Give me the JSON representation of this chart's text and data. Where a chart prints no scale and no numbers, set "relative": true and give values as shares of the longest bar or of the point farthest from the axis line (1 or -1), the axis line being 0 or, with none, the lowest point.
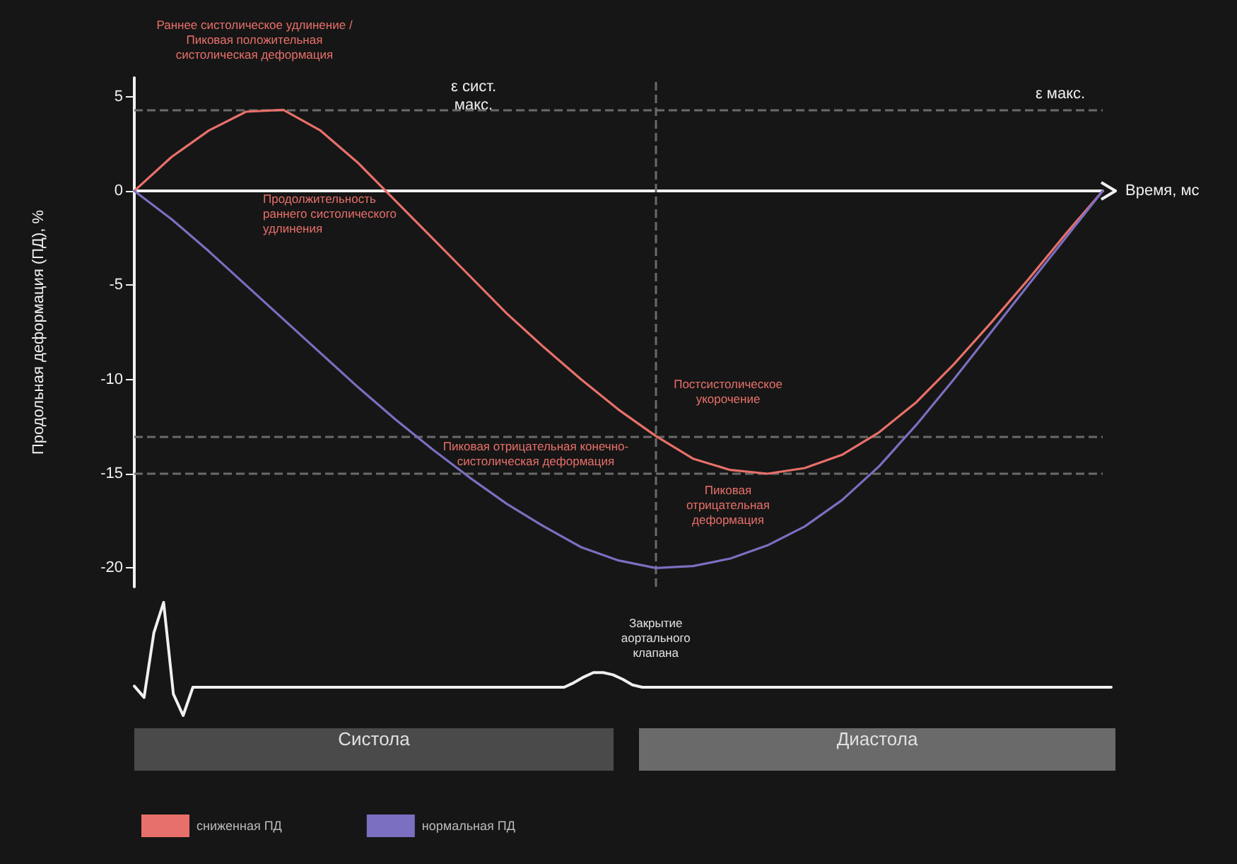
{
  "chart_data": [
    {
      "type": "line",
      "xlabel": "Время, мс",
      "ylabel": "Продольная деформация (ПД), %",
      "categories": [
        null,
        null,
        null,
        null,
        null,
        null,
        null,
        null,
        null,
        null,
        null,
        null,
        null,
        null,
        null,
        null,
        null,
        null,
        null,
        null,
        null,
        null,
        null,
        null,
        null,
        null,
        null
      ],
      "series": [
        {
          "name": "сниженная ПД",
          "color": "#e8706a",
          "values": [
            0,
            1.8,
            3.2,
            4.2,
            4.3,
            3.2,
            1.5,
            -0.5,
            -2.5,
            -4.5,
            -6.5,
            -8.3,
            -10,
            -11.6,
            -13,
            -14.2,
            -14.8,
            -15,
            -14.7,
            -14,
            -12.8,
            -11.2,
            -9.2,
            -7,
            -4.7,
            -2.3,
            0
          ]
        },
        {
          "name": "нормальная ПД",
          "color": "#7a6fc0",
          "values": [
            0,
            -1.5,
            -3.2,
            -5,
            -6.8,
            -8.6,
            -10.4,
            -12.1,
            -13.7,
            -15.2,
            -16.6,
            -17.8,
            -18.9,
            -19.6,
            -20,
            -19.9,
            -19.5,
            -18.8,
            -17.8,
            -16.4,
            -14.6,
            -12.4,
            -10,
            -7.5,
            -5,
            -2.5,
            0
          ]
        }
      ],
      "ylim": [
        -21,
        6
      ],
      "yticks": [
        5,
        0,
        -5,
        -10,
        -15,
        -20
      ],
      "tick_labels": "y",
      "legend": "bottom left",
      "marker": "none",
      "line_style": "solid",
      "ref_lines": [
        {
          "axis": "y",
          "value": 4.3,
          "color": "#6a6a6a",
          "line_style": "dashed"
        },
        {
          "axis": "y",
          "value": -13,
          "color": "#6a6a6a",
          "line_style": "dashed"
        },
        {
          "axis": "y",
          "value": -15,
          "color": "#6a6a6a",
          "line_style": "dashed"
        }
      ],
      "annotations": [
        "Раннее систолическое удлинение /\nПиковая положительная\nсистолическая деформация",
        "Продолжительность\nраннего систолического\nудлинения",
        "ε сист.\nмакс.",
        "ε макс.",
        "Пиковая отрицательная конечно-\nсистолическая деформация",
        "Постсистолическое\nукорочение",
        "Пиковая\nотрицательная\nдеформация",
        "Закрытие\nаортального\nклапана",
        "Систола",
        "Диастола"
      ]
    },
    {
      "type": "line",
      "relative": true,
      "marker": "none",
      "line_style": "solid",
      "categories": [
        null,
        null,
        null,
        null,
        null,
        null,
        null,
        null,
        null,
        null,
        null,
        null,
        null,
        null,
        null,
        null,
        null,
        null,
        null,
        null,
        null,
        null,
        null,
        null,
        null,
        null,
        null,
        null,
        null,
        null,
        null,
        null,
        null,
        null,
        null,
        null,
        null,
        null,
        null,
        null,
        null,
        null,
        null,
        null,
        null,
        null,
        null,
        null,
        null,
        null,
        null,
        null,
        null,
        null,
        null,
        null,
        null,
        null,
        null,
        null,
        null,
        null,
        null,
        null,
        null,
        null,
        null,
        null,
        null,
        null,
        null,
        null,
        null,
        null,
        null,
        null,
        null,
        null,
        null,
        null,
        null,
        null,
        null,
        null,
        null,
        null,
        null,
        null,
        null,
        null,
        null,
        null,
        null,
        null,
        null,
        null,
        null,
        null,
        null,
        null,
        null
      ],
      "series": [
        {
          "color": "#f0f0f0",
          "values": [
            0.26,
            0.16,
            0.73,
            1,
            0.19,
            0,
            0.25,
            0.25,
            0.25,
            0.25,
            0.25,
            0.25,
            0.25,
            0.25,
            0.25,
            0.25,
            0.25,
            0.25,
            0.25,
            0.25,
            0.25,
            0.25,
            0.25,
            0.25,
            0.25,
            0.25,
            0.25,
            0.25,
            0.25,
            0.25,
            0.25,
            0.25,
            0.25,
            0.25,
            0.25,
            0.25,
            0.25,
            0.25,
            0.25,
            0.25,
            0.25,
            0.25,
            0.25,
            0.25,
            0.25,
            0.29,
            0.34,
            0.38,
            0.38,
            0.36,
            0.32,
            0.27,
            0.25,
            0.25,
            0.25,
            0.25,
            0.25,
            0.25,
            0.25,
            0.25,
            0.25,
            0.25,
            0.25,
            0.25,
            0.25,
            0.25,
            0.25,
            0.25,
            0.25,
            0.25,
            0.25,
            0.25,
            0.25,
            0.25,
            0.25,
            0.25,
            0.25,
            0.25,
            0.25,
            0.25,
            0.25,
            0.25,
            0.25,
            0.25,
            0.25,
            0.25,
            0.25,
            0.25,
            0.25,
            0.25,
            0.25,
            0.25,
            0.25,
            0.25,
            0.25,
            0.25,
            0.25,
            0.25,
            0.25,
            0.25,
            0.25
          ]
        }
      ]
    }
  ]
}
